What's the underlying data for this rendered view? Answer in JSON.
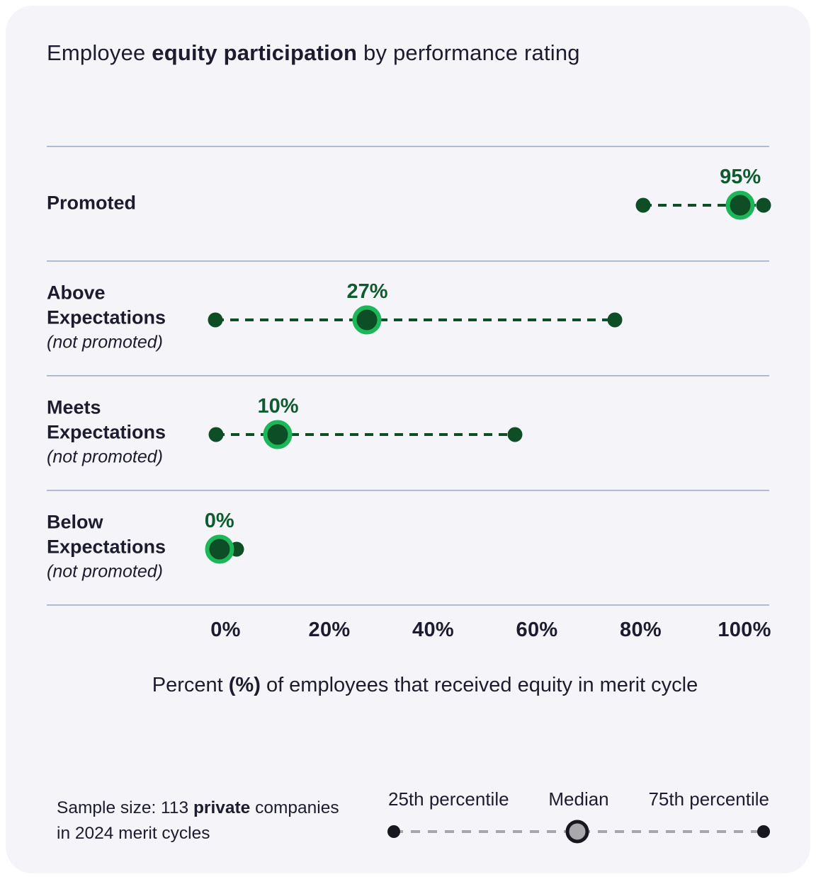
{
  "title": {
    "prefix": "Employee ",
    "bold": "equity participation",
    "suffix": " by performance rating"
  },
  "colors": {
    "card_background": "#f5f4f9",
    "text": "#1c1c2e",
    "separator": "#a9b3cf",
    "dot_green": "#0e4e26",
    "median_ring_green": "#1db658",
    "value_label_green": "#0d5c2f",
    "legend_gray": "#a6a6ae",
    "legend_median_fill": "#a9a9ad",
    "legend_black": "#17171f"
  },
  "chart_data": {
    "type": "dumbbell_dot_plot",
    "title": "Employee equity participation by performance rating",
    "x_axis": {
      "min": 0,
      "max": 100,
      "ticks": [
        "0%",
        "20%",
        "40%",
        "60%",
        "80%",
        "100%"
      ],
      "label": {
        "prefix": "Percent ",
        "bold": "(%)",
        "suffix": " of employees that received equity in merit cycle"
      }
    },
    "rows": [
      {
        "label": "Promoted",
        "sublabel": "",
        "p25": 80,
        "median": 95,
        "p75": 100,
        "median_label": "95%",
        "display": {
          "p25": 80.5,
          "median": 99.2,
          "p75": 103.7
        }
      },
      {
        "label": "Above Expectations",
        "sublabel": "(not promoted)",
        "p25": 0,
        "median": 27,
        "p75": 75,
        "median_label": "27%",
        "display": {
          "p25": -2,
          "median": 27.3,
          "p75": 75
        }
      },
      {
        "label": "Meets Expectations",
        "sublabel": "(not promoted)",
        "p25": 0,
        "median": 10,
        "p75": 56,
        "median_label": "10%",
        "display": {
          "p25": -1.8,
          "median": 10.1,
          "p75": 55.7
        }
      },
      {
        "label": "Below Expectations",
        "sublabel": "(not promoted)",
        "p25": 0,
        "median": 0,
        "p75": 2,
        "median_label": "0%",
        "display": {
          "p25": -1.2,
          "median": -1.2,
          "p75": 2.1
        }
      }
    ]
  },
  "legend": {
    "items": [
      "25th percentile",
      "Median",
      "75th percentile"
    ]
  },
  "footnote": {
    "prefix": "Sample size: 113 ",
    "bold": "private",
    "suffix": " companies",
    "line2": "in 2024 merit cycles"
  }
}
